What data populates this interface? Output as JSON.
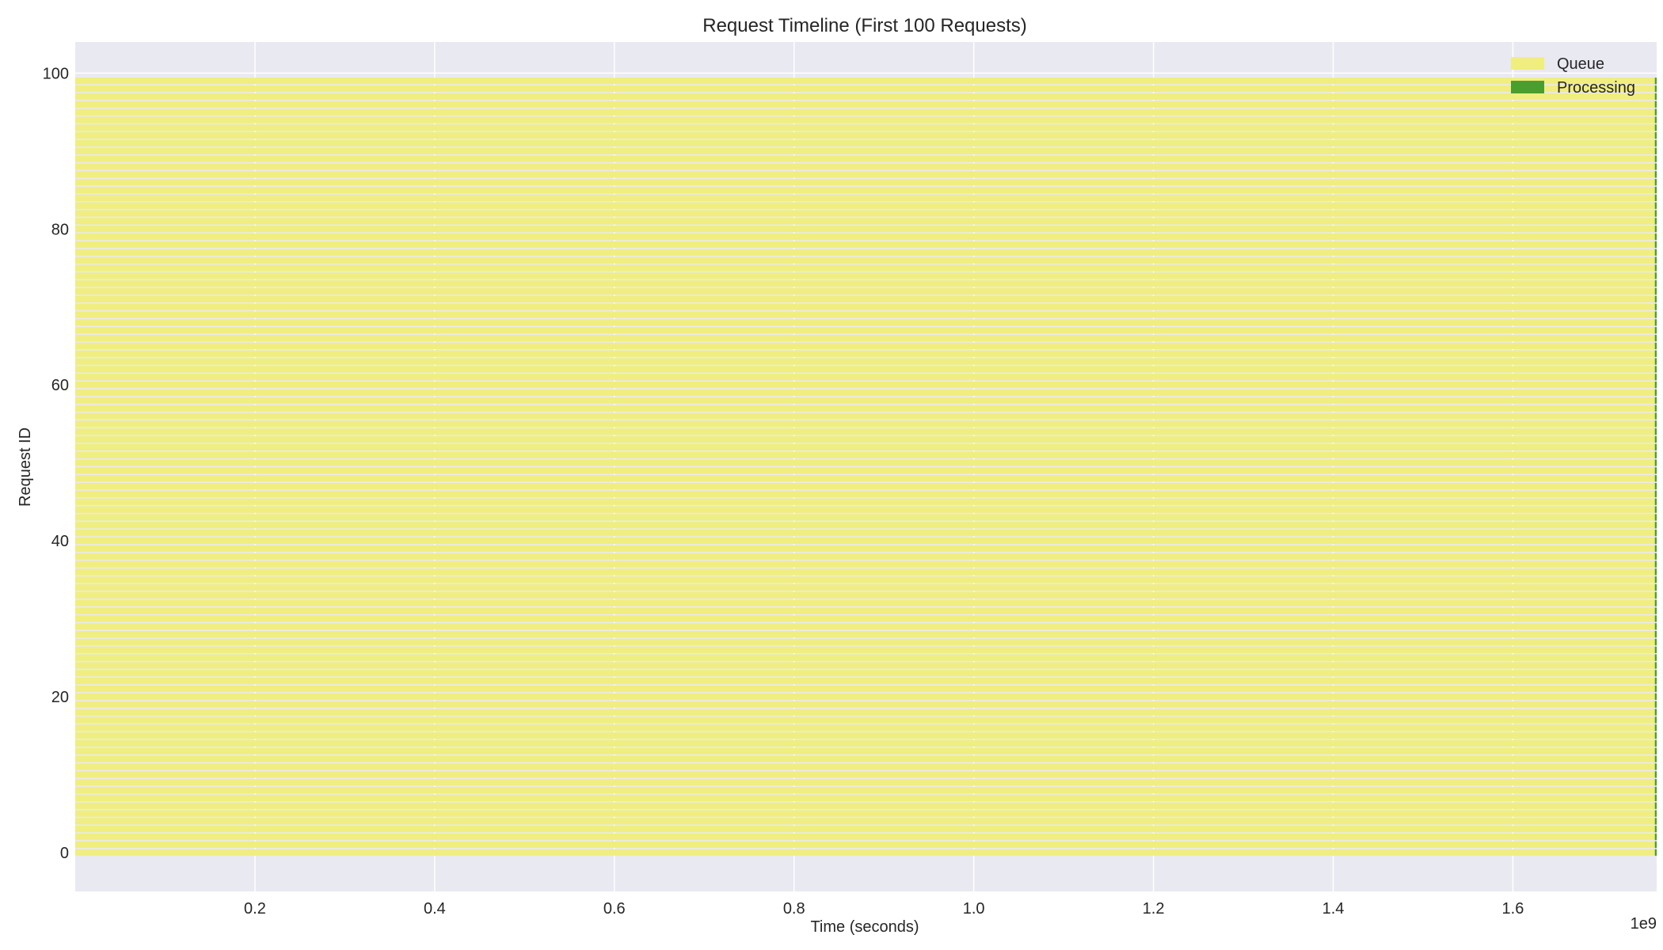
{
  "chart_data": {
    "type": "gantt",
    "title": "Request Timeline (First 100 Requests)",
    "xlabel": "Time (seconds)",
    "ylabel": "Request ID",
    "x_offset_label": "1e9",
    "x_scale_factor": 1000000000,
    "xlim": [
      0,
      1.76
    ],
    "ylim": [
      -5,
      104
    ],
    "xticks": [
      0.2,
      0.4,
      0.6,
      0.8,
      1.0,
      1.2,
      1.4,
      1.6
    ],
    "xtick_labels": [
      "0.2",
      "0.4",
      "0.6",
      "0.8",
      "1.0",
      "1.2",
      "1.4",
      "1.6"
    ],
    "yticks": [
      0,
      20,
      40,
      60,
      80,
      100
    ],
    "ytick_labels": [
      "0",
      "20",
      "40",
      "60",
      "80",
      "100"
    ],
    "grid": true,
    "legend_position": "upper-right",
    "n_requests": 100,
    "queue": {
      "start": 0,
      "end": 1.76
    },
    "processing_duration": 0.002,
    "series": [
      {
        "name": "Queue",
        "color": "#f0ee80"
      },
      {
        "name": "Processing",
        "color": "#4a9e2f"
      }
    ],
    "colors": {
      "plot_background": "#e9e9f2",
      "grid": "#ffffff",
      "text": "#262626"
    }
  }
}
